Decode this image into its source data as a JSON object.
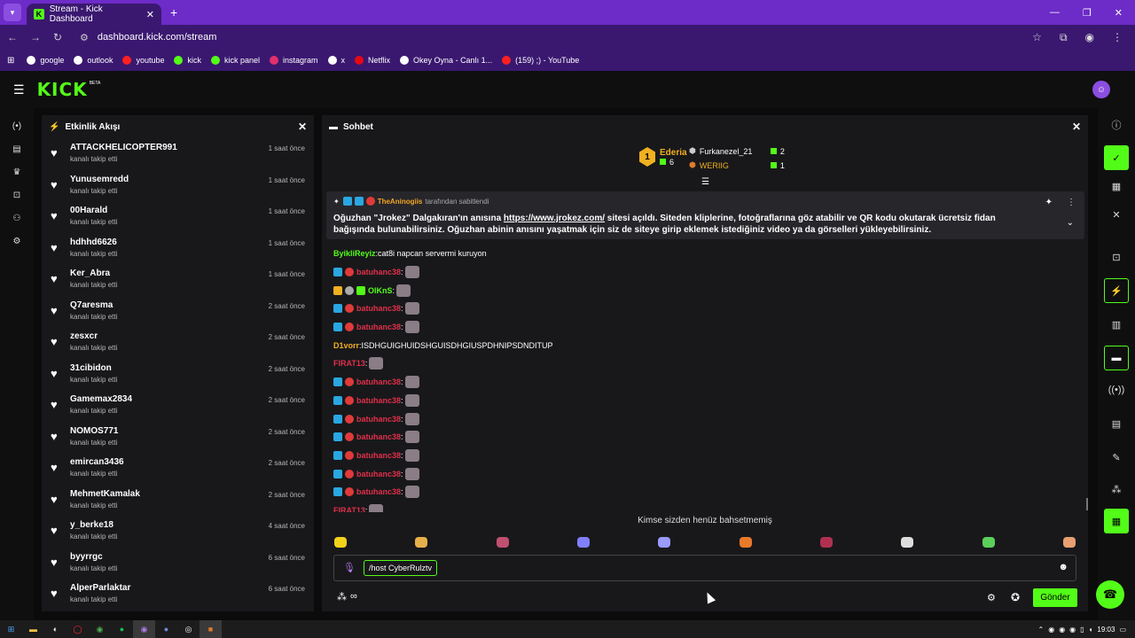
{
  "browser": {
    "tab_title": "Stream - Kick Dashboard",
    "tab_favicon": "K",
    "new_tab": "+",
    "url": "dashboard.kick.com/stream",
    "bookmarks": [
      {
        "label": "google",
        "color": "#ffffff"
      },
      {
        "label": "outlook",
        "color": "#ffffff"
      },
      {
        "label": "youtube",
        "color": "#ff2020"
      },
      {
        "label": "kick",
        "color": "#53fc18"
      },
      {
        "label": "kick panel",
        "color": "#53fc18"
      },
      {
        "label": "instagram",
        "color": "#e1306c"
      },
      {
        "label": "x",
        "color": "#ffffff"
      },
      {
        "label": "Netflix",
        "color": "#e50914"
      },
      {
        "label": "Okey Oyna - Canlı 1...",
        "color": "#ffffff"
      },
      {
        "label": "(159) ;) - YouTube",
        "color": "#ff2020"
      }
    ]
  },
  "kick": {
    "logo": "KICK",
    "beta": "BETA"
  },
  "activity": {
    "title": "Etkinlik Akışı",
    "items": [
      {
        "name": "ATTACKHELICOPTER991",
        "action": "kanalı takip etti",
        "time": "1 saat önce"
      },
      {
        "name": "Yunusemredd",
        "action": "kanalı takip etti",
        "time": "1 saat önce"
      },
      {
        "name": "00Harald",
        "action": "kanalı takip etti",
        "time": "1 saat önce"
      },
      {
        "name": "hdhhd6626",
        "action": "kanalı takip etti",
        "time": "1 saat önce"
      },
      {
        "name": "Ker_Abra",
        "action": "kanalı takip etti",
        "time": "1 saat önce"
      },
      {
        "name": "Q7aresma",
        "action": "kanalı takip etti",
        "time": "2 saat önce"
      },
      {
        "name": "zesxcr",
        "action": "kanalı takip etti",
        "time": "2 saat önce"
      },
      {
        "name": "31cibidon",
        "action": "kanalı takip etti",
        "time": "2 saat önce"
      },
      {
        "name": "Gamemax2834",
        "action": "kanalı takip etti",
        "time": "2 saat önce"
      },
      {
        "name": "NOMOS771",
        "action": "kanalı takip etti",
        "time": "2 saat önce"
      },
      {
        "name": "emircan3436",
        "action": "kanalı takip etti",
        "time": "2 saat önce"
      },
      {
        "name": "MehmetKamalak",
        "action": "kanalı takip etti",
        "time": "2 saat önce"
      },
      {
        "name": "y_berke18",
        "action": "kanalı takip etti",
        "time": "4 saat önce"
      },
      {
        "name": "byyrrgc",
        "action": "kanalı takip etti",
        "time": "6 saat önce"
      },
      {
        "name": "AlperParlaktar",
        "action": "kanalı takip etti",
        "time": "6 saat önce"
      }
    ]
  },
  "chat": {
    "title": "Sohbet",
    "leaderboard": {
      "first": {
        "rank": "1",
        "name": "Ederia",
        "count": "6"
      },
      "second": {
        "name": "Furkanezel_21",
        "count": "2"
      },
      "third": {
        "name": "WERIIG",
        "count": "1"
      }
    },
    "pinned": {
      "user": "TheAninogiis",
      "by": "tarafından sabitlendi",
      "text_before": "Oğuzhan \"Jrokez\" Dalgakıran'ın anısına ",
      "link": "https://www.jrokez.com/",
      "text_after": " sitesi açıldı. Siteden kliplerine, fotoğraflarına göz atabilir ve QR kodu okutarak ücretsiz fidan bağışında bulunabilirsiniz. Oğuzhan abinin anısını yaşatmak için siz de siteye girip eklemek istediğiniz video ya da görselleri yükleyebilirsiniz."
    },
    "messages": [
      {
        "user": "ByikliReyiz",
        "color": "#53fc18",
        "text": "cat8i napcan servermi kuruyon",
        "badges": [],
        "emote": false
      },
      {
        "user": "batuhanc38",
        "color": "#e0304a",
        "text": "",
        "badges": [
          "blue",
          "red"
        ],
        "emote": true
      },
      {
        "user": "OlKnS",
        "color": "#53fc18",
        "text": "",
        "badges": [
          "gold",
          "grey",
          "green"
        ],
        "emote": true
      },
      {
        "user": "batuhanc38",
        "color": "#e0304a",
        "text": "",
        "badges": [
          "blue",
          "red"
        ],
        "emote": true
      },
      {
        "user": "batuhanc38",
        "color": "#e0304a",
        "text": "",
        "badges": [
          "blue",
          "red"
        ],
        "emote": true
      },
      {
        "user": "D1vorr",
        "color": "#f0b020",
        "text": "ISDHGUIGHUIDSHGUISDHGIUSPDHNIPSDNDITUP",
        "badges": [],
        "emote": false
      },
      {
        "user": "FIRAT13",
        "color": "#e0304a",
        "text": "",
        "badges": [],
        "emote": true
      },
      {
        "user": "batuhanc38",
        "color": "#e0304a",
        "text": "",
        "badges": [
          "blue",
          "red"
        ],
        "emote": true
      },
      {
        "user": "batuhanc38",
        "color": "#e0304a",
        "text": "",
        "badges": [
          "blue",
          "red"
        ],
        "emote": true
      },
      {
        "user": "batuhanc38",
        "color": "#e0304a",
        "text": "",
        "badges": [
          "blue",
          "red"
        ],
        "emote": true
      },
      {
        "user": "batuhanc38",
        "color": "#e0304a",
        "text": "",
        "badges": [
          "blue",
          "red"
        ],
        "emote": true
      },
      {
        "user": "batuhanc38",
        "color": "#e0304a",
        "text": "",
        "badges": [
          "blue",
          "red"
        ],
        "emote": true
      },
      {
        "user": "batuhanc38",
        "color": "#e0304a",
        "text": "",
        "badges": [
          "blue",
          "red"
        ],
        "emote": true
      },
      {
        "user": "batuhanc38",
        "color": "#e0304a",
        "text": "",
        "badges": [
          "blue",
          "red"
        ],
        "emote": true
      },
      {
        "user": "FIRAT13",
        "color": "#e0304a",
        "text": "",
        "badges": [],
        "emote": true
      }
    ],
    "mention_text": "Kimse sizden henüz bahsetmemiş",
    "input_value": "/host CyberRulztv",
    "send_label": "Gönder"
  },
  "taskbar": {
    "clock": "19:03"
  }
}
